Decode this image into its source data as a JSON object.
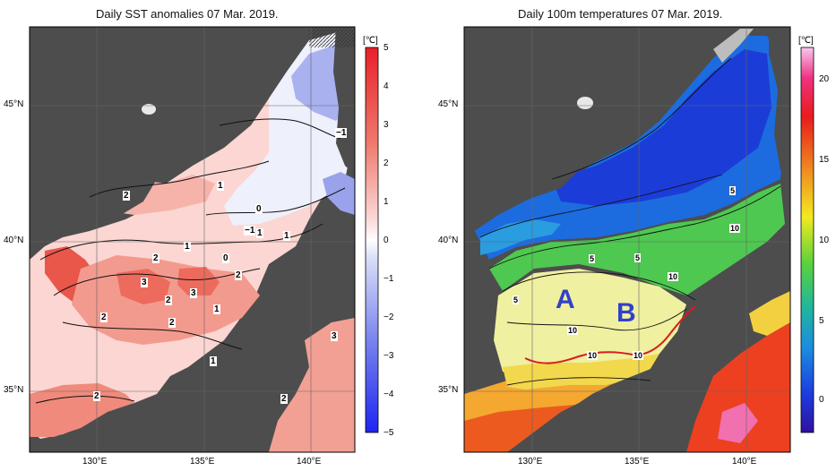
{
  "left_panel": {
    "title": "Daily SST anomalies 07 Mar. 2019.",
    "colorbar_unit": "[℃]",
    "colorbar_ticks": [
      "5",
      "4",
      "3",
      "2",
      "1",
      "0",
      "−1",
      "−2",
      "−3",
      "−4",
      "−5"
    ],
    "lat_labels": [
      "45°N",
      "40°N",
      "35°N"
    ],
    "lon_labels": [
      "130°E",
      "135°E",
      "140°E"
    ],
    "contour_labels": [
      "2",
      "3",
      "2",
      "3",
      "2",
      "2",
      "2",
      "1",
      "2",
      "1",
      "0",
      "1",
      "0",
      "−1",
      "1",
      "1",
      "3",
      "2",
      "2",
      "1",
      "−1"
    ]
  },
  "right_panel": {
    "title": "Daily 100m temperatures 07 Mar. 2019.",
    "colorbar_unit": "[℃]",
    "colorbar_ticks": [
      "20",
      "15",
      "10",
      "5",
      "0"
    ],
    "lat_labels": [
      "45°N",
      "40°N",
      "35°N"
    ],
    "lon_labels": [
      "130°E",
      "135°E",
      "140°E"
    ],
    "markers": [
      "A",
      "B"
    ],
    "contour_labels": [
      "5",
      "5",
      "5",
      "10",
      "5",
      "10",
      "10",
      "10",
      "10"
    ]
  },
  "colors": {
    "land": "#4d4d4d",
    "anomaly_pos": "#e8413a",
    "anomaly_neg": "#5563e0",
    "marker_text": "#3340c8",
    "front_line": "#d91c1c"
  }
}
